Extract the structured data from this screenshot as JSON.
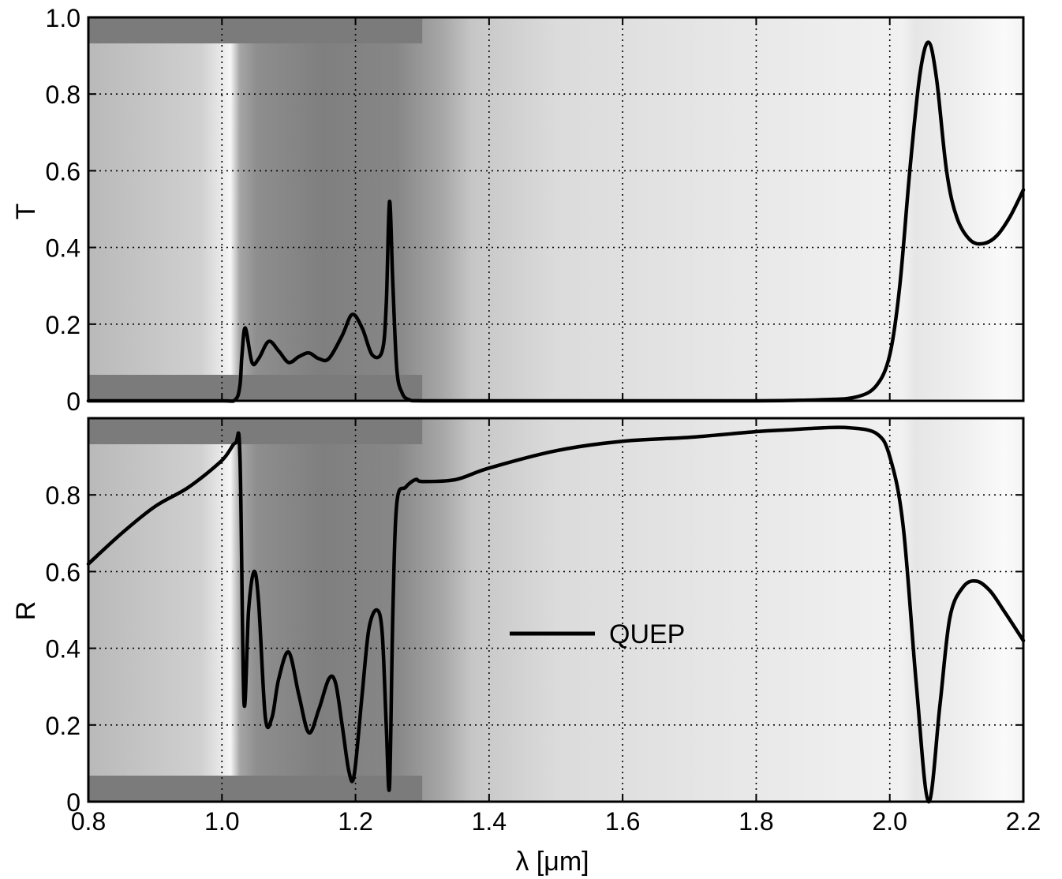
{
  "chart_data": [
    {
      "type": "line",
      "panel": "top",
      "ylabel": "T",
      "xlim": [
        0.8,
        2.2
      ],
      "ylim": [
        0,
        1.0
      ],
      "yticks": [
        "0",
        "0.2",
        "0.4",
        "0.6",
        "0.8",
        "1.0"
      ],
      "ytick_values": [
        0,
        0.2,
        0.4,
        0.6,
        0.8,
        1.0
      ],
      "grid": true,
      "series": [
        {
          "name": "QUEP",
          "x": [
            0.8,
            0.9,
            1.0,
            1.02,
            1.027,
            1.03,
            1.035,
            1.045,
            1.055,
            1.07,
            1.085,
            1.1,
            1.115,
            1.13,
            1.145,
            1.16,
            1.18,
            1.195,
            1.21,
            1.225,
            1.24,
            1.246,
            1.251,
            1.256,
            1.262,
            1.27,
            1.28,
            1.3,
            1.4,
            1.6,
            1.8,
            1.9,
            1.95,
            1.98,
            2.0,
            2.015,
            2.03,
            2.045,
            2.058,
            2.07,
            2.085,
            2.1,
            2.12,
            2.14,
            2.16,
            2.18,
            2.2
          ],
          "y": [
            0.0,
            0.0,
            0.0,
            0.003,
            0.04,
            0.12,
            0.19,
            0.1,
            0.11,
            0.155,
            0.13,
            0.1,
            0.115,
            0.125,
            0.11,
            0.11,
            0.17,
            0.225,
            0.19,
            0.12,
            0.13,
            0.25,
            0.52,
            0.3,
            0.08,
            0.02,
            0.003,
            0.0,
            0.0,
            0.0,
            0.0,
            0.003,
            0.01,
            0.04,
            0.12,
            0.3,
            0.6,
            0.85,
            0.935,
            0.84,
            0.6,
            0.48,
            0.42,
            0.41,
            0.43,
            0.48,
            0.55
          ]
        }
      ]
    },
    {
      "type": "line",
      "panel": "bottom",
      "ylabel": "R",
      "xlabel": "λ [μm]",
      "xlim": [
        0.8,
        2.2
      ],
      "ylim": [
        0,
        1.0
      ],
      "xticks": [
        "0.8",
        "1.0",
        "1.2",
        "1.4",
        "1.6",
        "1.8",
        "2.0",
        "2.2"
      ],
      "xtick_values": [
        0.8,
        1.0,
        1.2,
        1.4,
        1.6,
        1.8,
        2.0,
        2.2
      ],
      "yticks": [
        "0",
        "0.2",
        "0.4",
        "0.6",
        "0.8"
      ],
      "ytick_values": [
        0,
        0.2,
        0.4,
        0.6,
        0.8
      ],
      "grid": true,
      "legend": {
        "position": "center",
        "entries": [
          "QUEP"
        ]
      },
      "series": [
        {
          "name": "QUEP",
          "x": [
            0.8,
            0.85,
            0.9,
            0.95,
            1.0,
            1.02,
            1.027,
            1.033,
            1.04,
            1.048,
            1.055,
            1.065,
            1.075,
            1.085,
            1.1,
            1.115,
            1.13,
            1.145,
            1.16,
            1.17,
            1.18,
            1.19,
            1.198,
            1.21,
            1.22,
            1.232,
            1.24,
            1.246,
            1.251,
            1.256,
            1.262,
            1.275,
            1.29,
            1.3,
            1.35,
            1.4,
            1.5,
            1.6,
            1.7,
            1.8,
            1.85,
            1.9,
            1.94,
            1.98,
            2.0,
            2.02,
            2.04,
            2.058,
            2.075,
            2.09,
            2.11,
            2.13,
            2.15,
            2.17,
            2.2
          ],
          "y": [
            0.62,
            0.7,
            0.77,
            0.82,
            0.89,
            0.935,
            0.9,
            0.26,
            0.5,
            0.6,
            0.52,
            0.22,
            0.22,
            0.32,
            0.39,
            0.28,
            0.18,
            0.24,
            0.32,
            0.31,
            0.2,
            0.08,
            0.07,
            0.28,
            0.45,
            0.5,
            0.44,
            0.2,
            0.04,
            0.5,
            0.78,
            0.82,
            0.84,
            0.835,
            0.84,
            0.87,
            0.915,
            0.94,
            0.95,
            0.965,
            0.97,
            0.975,
            0.975,
            0.96,
            0.9,
            0.72,
            0.3,
            0.0,
            0.25,
            0.48,
            0.56,
            0.575,
            0.55,
            0.5,
            0.42
          ]
        }
      ]
    }
  ]
}
